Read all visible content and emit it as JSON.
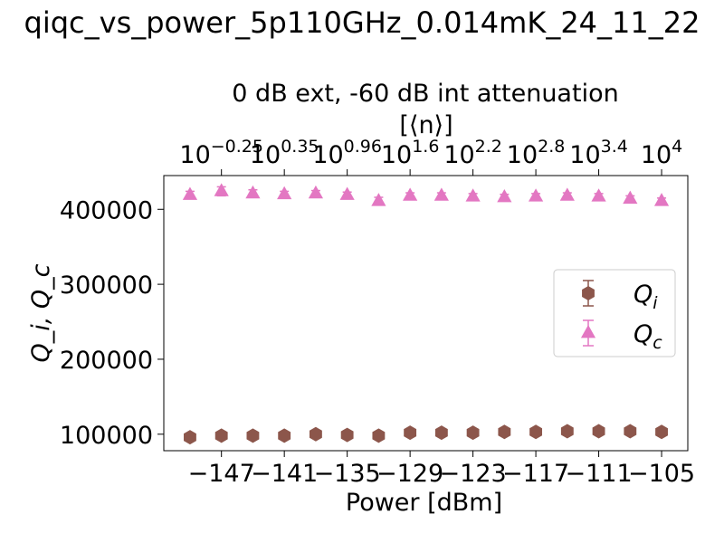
{
  "figure": {
    "suptitle": "qiqc_vs_power_5p110GHz_0.014mK_24_11_22",
    "title": "0 dB ext, -60 dB int attenuation"
  },
  "chart_data": {
    "type": "scatter",
    "xlabel": "Power [dBm]",
    "ylabel": "Q_i, Q_c",
    "top_xlabel": "[⟨n⟩]",
    "xlim": [
      -152.5,
      -102.5
    ],
    "ylim": [
      78000,
      445000
    ],
    "x_ticks": [
      -147,
      -141,
      -135,
      -129,
      -123,
      -117,
      -111,
      -105
    ],
    "x_tick_labels": [
      "−147",
      "−141",
      "−135",
      "−129",
      "−123",
      "−117",
      "−111",
      "−105"
    ],
    "y_ticks": [
      100000,
      200000,
      300000,
      400000
    ],
    "y_tick_labels": [
      "100000",
      "200000",
      "300000",
      "400000"
    ],
    "top_ticks": [
      {
        "power": -147,
        "base": "10",
        "exp": "−0.25"
      },
      {
        "power": -141,
        "base": "10",
        "exp": "0.35"
      },
      {
        "power": -135,
        "base": "10",
        "exp": "0.96"
      },
      {
        "power": -129,
        "base": "10",
        "exp": "1.6"
      },
      {
        "power": -123,
        "base": "10",
        "exp": "2.2"
      },
      {
        "power": -117,
        "base": "10",
        "exp": "2.8"
      },
      {
        "power": -111,
        "base": "10",
        "exp": "3.4"
      },
      {
        "power": -105,
        "base": "10",
        "exp": "4"
      }
    ],
    "x": [
      -150,
      -147,
      -144,
      -141,
      -138,
      -135,
      -132,
      -129,
      -126,
      -123,
      -120,
      -117,
      -114,
      -111,
      -108,
      -105
    ],
    "series": [
      {
        "name": "Q_i",
        "label_main": "Q",
        "label_sub": "i",
        "color": "#8c564b",
        "marker": "hexagon",
        "values": [
          96000,
          98000,
          98000,
          98000,
          100000,
          99000,
          98000,
          102000,
          102000,
          102000,
          103000,
          103000,
          104000,
          104000,
          104000,
          103000
        ],
        "errors": [
          2000,
          2000,
          2000,
          2000,
          2000,
          2000,
          2000,
          2000,
          2000,
          2000,
          2000,
          2000,
          2000,
          2000,
          2000,
          2000
        ]
      },
      {
        "name": "Q_c",
        "label_main": "Q",
        "label_sub": "c",
        "color": "#e377c2",
        "marker": "triangle",
        "values": [
          419000,
          424000,
          421000,
          420000,
          421000,
          419000,
          411000,
          418000,
          418000,
          417000,
          416000,
          417000,
          418000,
          417000,
          414000,
          411000
        ],
        "errors": [
          5000,
          6000,
          5000,
          4000,
          4000,
          4000,
          5000,
          4000,
          4000,
          4000,
          4000,
          4000,
          4000,
          4000,
          4000,
          4000
        ]
      }
    ],
    "legend_position": "center right",
    "grid": false
  }
}
